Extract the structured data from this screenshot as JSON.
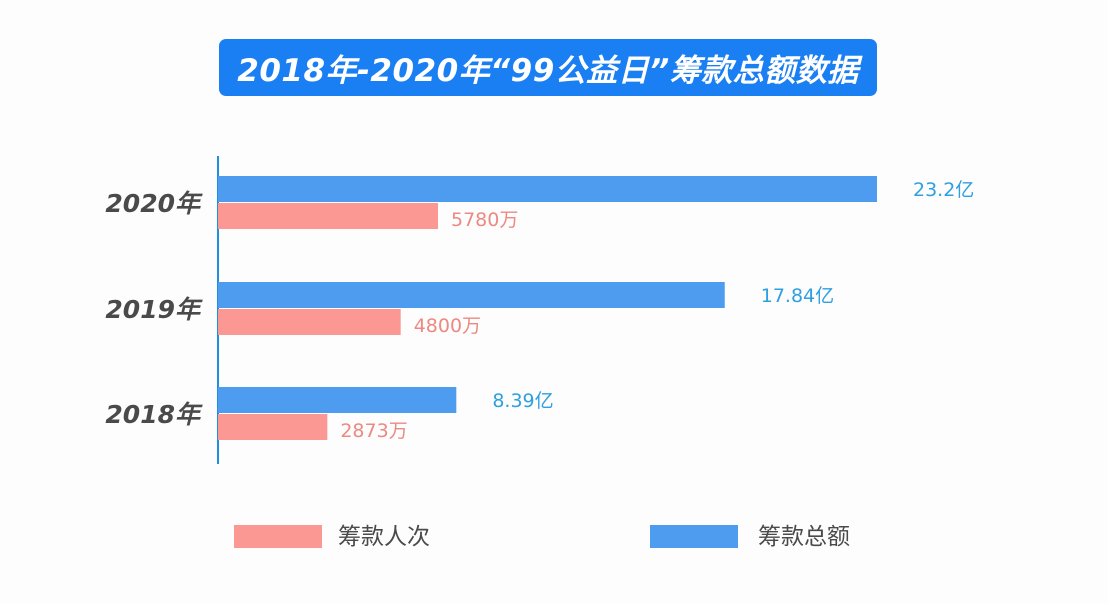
{
  "title": "2018年-2020年“99公益日”筹款总额数据",
  "colors": {
    "amount": "#4d9cf0",
    "count": "#fb9894",
    "banner": "#1a7ff2",
    "axis": "#1f8fe0"
  },
  "chart_data": {
    "type": "bar",
    "orientation": "horizontal",
    "title": "2018年-2020年“99公益日”筹款总额数据",
    "categories": [
      "2020年",
      "2019年",
      "2018年"
    ],
    "series": [
      {
        "name": "筹款总额",
        "values": [
          23.2,
          17.84,
          8.39
        ],
        "labels": [
          "23.2亿",
          "17.84亿",
          "8.39亿"
        ],
        "color": "#4d9cf0"
      },
      {
        "name": "筹款人次",
        "values": [
          5780,
          4800,
          2873
        ],
        "labels": [
          "5780万",
          "4800万",
          "2873万"
        ],
        "color": "#fb9894"
      }
    ],
    "scale_max": {
      "筹款总额": 23.2,
      "筹款人次": 28900
    },
    "legend": [
      "筹款人次",
      "筹款总额"
    ],
    "legend_position": "bottom",
    "grid": false
  }
}
